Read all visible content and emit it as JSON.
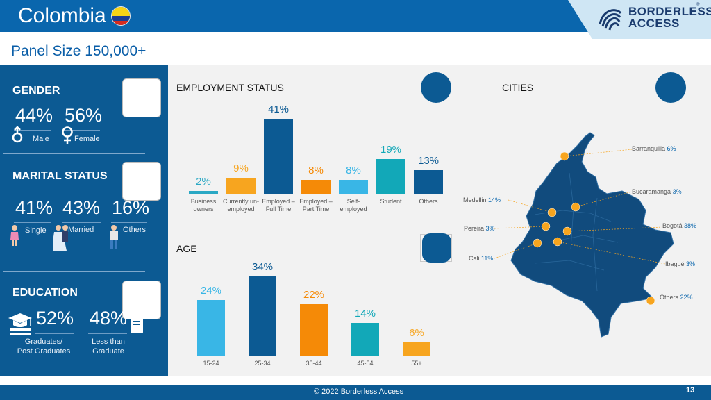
{
  "header": {
    "title": "Colombia",
    "logo_line1": "BORDERLESS",
    "logo_line2": "ACCESS",
    "reg": "®"
  },
  "panel_size": "Panel Size 150,000+",
  "gender": {
    "title": "GENDER",
    "male_pct": "44%",
    "male_label": "Male",
    "female_pct": "56%",
    "female_label": "Female"
  },
  "marital": {
    "title": "MARITAL STATUS",
    "single_pct": "41%",
    "single_label": "Single",
    "married_pct": "43%",
    "married_label": "Married",
    "others_pct": "16%",
    "others_label": "Others"
  },
  "education": {
    "title": "EDUCATION",
    "grad_pct": "52%",
    "grad_label_1": "Graduates/",
    "grad_label_2": "Post Graduates",
    "less_pct": "48%",
    "less_label_1": "Less than",
    "less_label_2": "Graduate"
  },
  "employment": {
    "title": "EMPLOYMENT STATUS"
  },
  "age": {
    "title": "AGE"
  },
  "cities": {
    "title": "CITIES",
    "items": [
      {
        "name": "Barranquilla",
        "pct": "6%"
      },
      {
        "name": "Bucaramanga",
        "pct": "3%"
      },
      {
        "name": "Medellin",
        "pct": "14%"
      },
      {
        "name": "Bogotá",
        "pct": "38%"
      },
      {
        "name": "Pereira",
        "pct": "3%"
      },
      {
        "name": "Cali",
        "pct": "11%"
      },
      {
        "name": "Ibagué",
        "pct": "3%"
      },
      {
        "name": "Others",
        "pct": "22%"
      }
    ],
    "colors": {
      "map": "#114b7d",
      "marker": "#f7a51f"
    }
  },
  "chart_data": [
    {
      "type": "bar",
      "title": "EMPLOYMENT STATUS",
      "categories": [
        "Business owners",
        "Currently un-employed",
        "Employed – Full Time",
        "Employed – Part Time",
        "Self-employed",
        "Student",
        "Others"
      ],
      "values": [
        2,
        9,
        41,
        8,
        8,
        19,
        13
      ],
      "value_labels": [
        "2%",
        "9%",
        "41%",
        "8%",
        "8%",
        "19%",
        "13%"
      ],
      "colors": [
        "#2aa8c4",
        "#f7a51f",
        "#0c5a93",
        "#f58a07",
        "#39b6e6",
        "#12a8b8",
        "#0c5a93"
      ],
      "ylim": [
        0,
        45
      ]
    },
    {
      "type": "bar",
      "title": "AGE",
      "categories": [
        "15-24",
        "25-34",
        "35-44",
        "45-54",
        "55+"
      ],
      "values": [
        24,
        34,
        22,
        14,
        6
      ],
      "value_labels": [
        "24%",
        "34%",
        "22%",
        "14%",
        "6%"
      ],
      "colors": [
        "#39b6e6",
        "#0c5a93",
        "#f58a07",
        "#12a8b8",
        "#f7a51f"
      ],
      "ylim": [
        0,
        38
      ]
    }
  ],
  "footer": {
    "copyright": "© 2022 Borderless Access",
    "page": "13"
  }
}
